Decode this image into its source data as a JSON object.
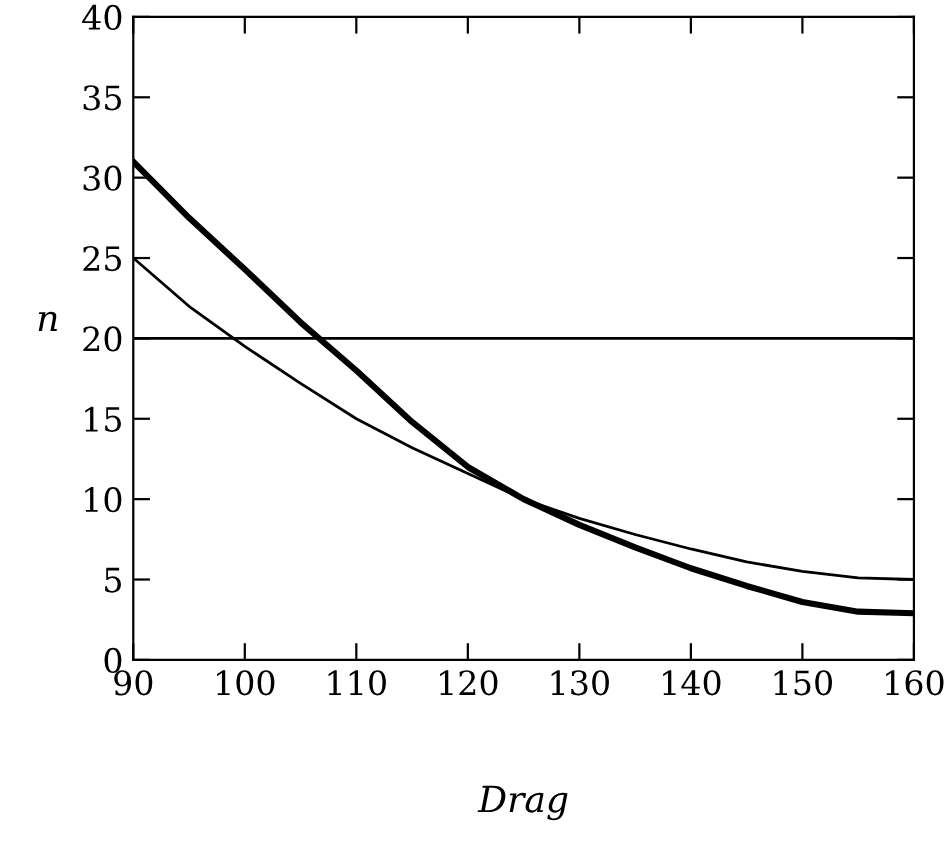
{
  "chart_data": {
    "type": "line",
    "xlabel": "Drag",
    "ylabel": "n",
    "x": [
      90,
      95,
      100,
      105,
      110,
      115,
      120,
      125,
      130,
      135,
      140,
      145,
      150,
      155,
      160
    ],
    "series": [
      {
        "color": "#000000",
        "values": [
          31,
          27.5,
          24.3,
          21,
          18,
          14.8,
          12,
          10,
          8.4,
          7,
          5.7,
          4.6,
          3.6,
          3,
          2.9
        ]
      },
      {
        "color": "#000000",
        "values": [
          25,
          22,
          19.5,
          17.2,
          15,
          13.2,
          11.6,
          10,
          8.8,
          7.8,
          6.9,
          6.1,
          5.5,
          5.1,
          5
        ]
      }
    ],
    "ref_lines": [
      {
        "axis": "y",
        "value": 20,
        "color": "#000000"
      }
    ],
    "xlim": [
      90,
      160
    ],
    "xticks": [
      90,
      100,
      110,
      120,
      130,
      140,
      150,
      160
    ],
    "ylim": [
      0,
      40
    ],
    "yticks": [
      0,
      5,
      10,
      15,
      20,
      25,
      30,
      35,
      40
    ],
    "grid": false,
    "legend": false
  }
}
